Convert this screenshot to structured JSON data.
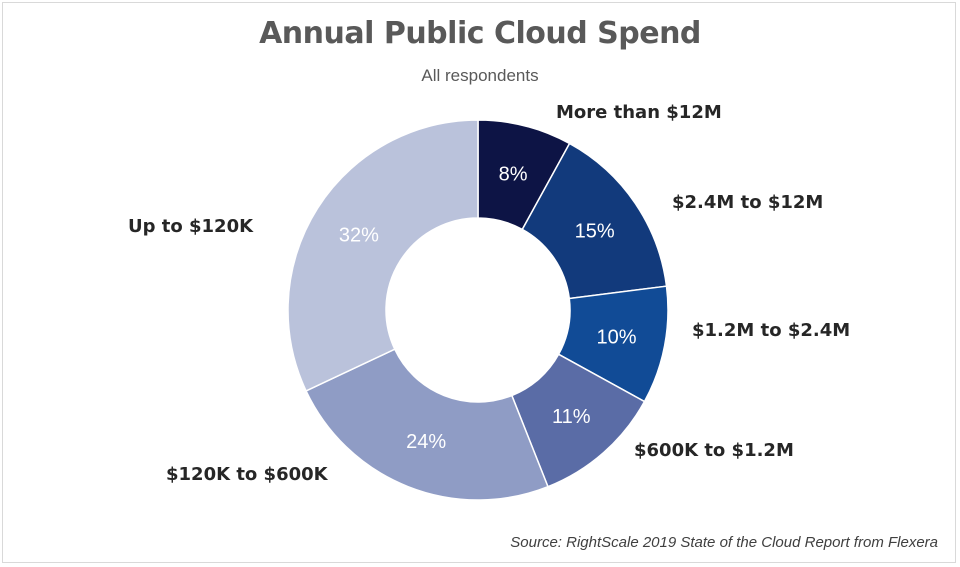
{
  "chart_data": {
    "type": "pie",
    "title": "Annual Public Cloud Spend",
    "subtitle": "All respondents",
    "source": "Source: RightScale 2019 State of the Cloud Report from Flexera",
    "slices": [
      {
        "label": "More than $12M",
        "value": 8,
        "value_label": "8%",
        "color": "#0d1445",
        "label_color": "#ffffff"
      },
      {
        "label": "$2.4M to $12M",
        "value": 15,
        "value_label": "15%",
        "color": "#123a7c",
        "label_color": "#ffffff"
      },
      {
        "label": "$1.2M to $2.4M",
        "value": 10,
        "value_label": "10%",
        "color": "#114b96",
        "label_color": "#ffffff"
      },
      {
        "label": "$600K to $1.2M",
        "value": 11,
        "value_label": "11%",
        "color": "#5a6ca6",
        "label_color": "#ffffff"
      },
      {
        "label": "$120K to $600K",
        "value": 24,
        "value_label": "24%",
        "color": "#8f9cc5",
        "label_color": "#ffffff"
      },
      {
        "label": "Up to $120K",
        "value": 32,
        "value_label": "32%",
        "color": "#bac2db",
        "label_color": "#ffffff"
      }
    ]
  }
}
